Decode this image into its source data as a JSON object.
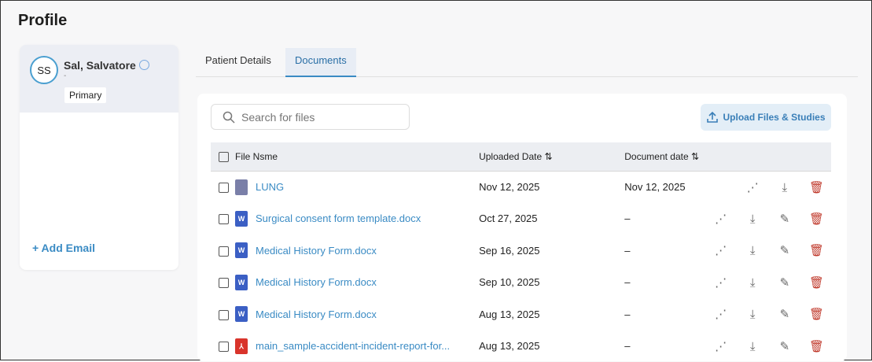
{
  "page": {
    "title": "Profile"
  },
  "patient": {
    "initials": "SS",
    "name": "Sal, Salvatore",
    "sub": "-",
    "tag": "Primary",
    "add_email": "+ Add Email"
  },
  "tabs": [
    {
      "label": "Patient Details",
      "active": false
    },
    {
      "label": "Documents",
      "active": true
    }
  ],
  "search": {
    "placeholder": "Search for files",
    "value": ""
  },
  "upload_label": "Upload Files & Studies",
  "columns": {
    "name": "File Nsme",
    "uploaded": "Uploaded Date ⇅",
    "document": "Document date ⇅"
  },
  "rows": [
    {
      "type": "file",
      "name": "LUNG",
      "uploaded": "Nov 12, 2025",
      "document": "Nov 12, 2025",
      "editable": false
    },
    {
      "type": "word",
      "name": "Surgical consent form template.docx",
      "uploaded": "Oct 27, 2025",
      "document": "–",
      "editable": true
    },
    {
      "type": "word",
      "name": "Medical History Form.docx",
      "uploaded": "Sep 16, 2025",
      "document": "–",
      "editable": true
    },
    {
      "type": "word",
      "name": "Medical History Form.docx",
      "uploaded": "Sep 10, 2025",
      "document": "–",
      "editable": true
    },
    {
      "type": "word",
      "name": "Medical History Form.docx",
      "uploaded": "Aug 13, 2025",
      "document": "–",
      "editable": true
    },
    {
      "type": "pdf",
      "name": "main_sample-accident-incident-report-for...",
      "uploaded": "Aug 13, 2025",
      "document": "–",
      "editable": true
    }
  ],
  "colors": {
    "accent": "#3a8bc4",
    "delete": "#c0392b",
    "word": "#3b5fc4",
    "pdf": "#d9342b",
    "file": "#7a7fa8"
  }
}
